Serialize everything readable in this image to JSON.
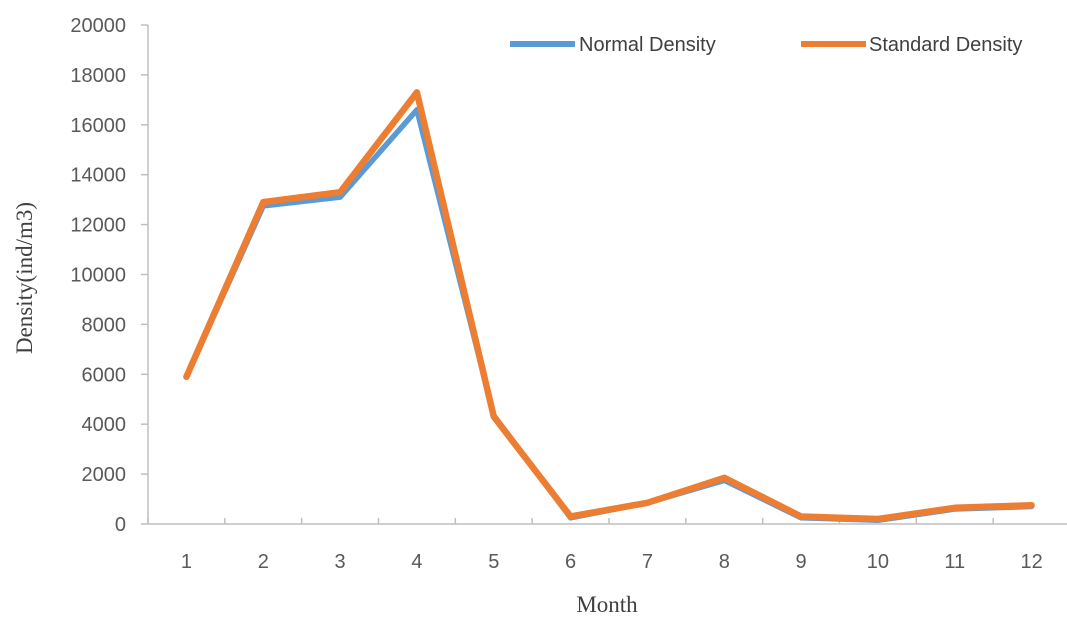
{
  "chart_data": {
    "type": "line",
    "title": "",
    "xlabel": "Month",
    "ylabel": "Density(ind/m3)",
    "categories": [
      "1",
      "2",
      "3",
      "4",
      "5",
      "6",
      "7",
      "8",
      "9",
      "10",
      "11",
      "12"
    ],
    "ylim": [
      0,
      20000
    ],
    "yticks": [
      "0",
      "2000",
      "4000",
      "6000",
      "8000",
      "10000",
      "12000",
      "14000",
      "16000",
      "18000",
      "20000"
    ],
    "grid": false,
    "legend_position": "top-right",
    "series": [
      {
        "name": "Normal Density",
        "color": "#5B9BD5",
        "values": [
          5900,
          12750,
          13100,
          16600,
          4350,
          250,
          850,
          1750,
          250,
          150,
          600,
          700
        ]
      },
      {
        "name": "Standard Density",
        "color": "#ED7D31",
        "values": [
          5900,
          12900,
          13300,
          17300,
          4300,
          300,
          850,
          1850,
          300,
          200,
          650,
          750
        ]
      }
    ]
  }
}
